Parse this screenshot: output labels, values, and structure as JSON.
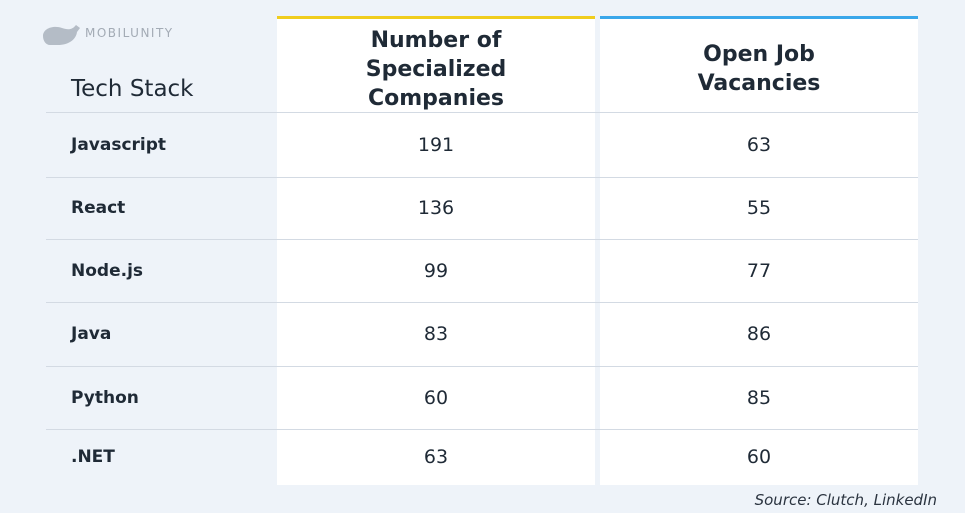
{
  "logo": "MOBILUNITY",
  "table": {
    "header": [
      "Tech Stack",
      "Number of Specialized Companies",
      "Open Job Vacancies"
    ],
    "rows": [
      [
        "Javascript",
        191,
        63
      ],
      [
        "React",
        136,
        55
      ],
      [
        "Node.js",
        99,
        77
      ],
      [
        "Java",
        83,
        86
      ],
      [
        "Python",
        60,
        85
      ],
      [
        ".NET",
        63,
        60
      ]
    ]
  },
  "source": "Source: Clutch, LinkedIn"
}
